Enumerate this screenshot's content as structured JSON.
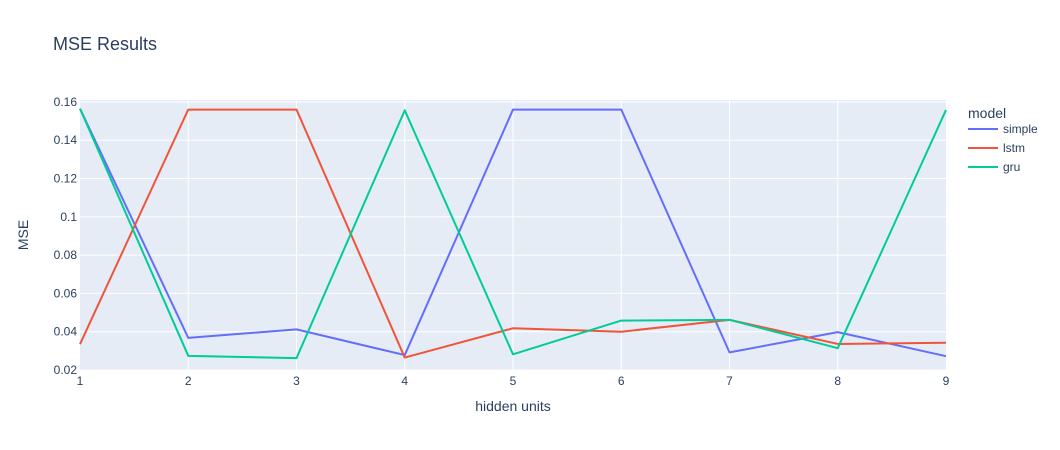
{
  "chart_data": {
    "type": "line",
    "title": "MSE Results",
    "xlabel": "hidden units",
    "ylabel": "MSE",
    "x": [
      1,
      2,
      3,
      4,
      5,
      6,
      7,
      8,
      9
    ],
    "xlim": [
      1,
      9
    ],
    "ylim": [
      0.02,
      0.161
    ],
    "xticks": [
      1,
      2,
      3,
      4,
      5,
      6,
      7,
      8,
      9
    ],
    "yticks": [
      0.02,
      0.04,
      0.06,
      0.08,
      0.1,
      0.12,
      0.14,
      0.16
    ],
    "ytick_labels": [
      "0.02",
      "0.04",
      "0.06",
      "0.08",
      "0.1",
      "0.12",
      "0.14",
      "0.16"
    ],
    "grid": true,
    "legend": {
      "title": "model",
      "position": "right"
    },
    "series": [
      {
        "name": "simple",
        "color": "#636efa",
        "values": [
          0.1565,
          0.0368,
          0.0412,
          0.0278,
          0.156,
          0.156,
          0.0292,
          0.0398,
          0.0272
        ]
      },
      {
        "name": "lstm",
        "color": "#ef553b",
        "values": [
          0.0335,
          0.156,
          0.156,
          0.0265,
          0.0418,
          0.04,
          0.0462,
          0.0336,
          0.0342
        ]
      },
      {
        "name": "gru",
        "color": "#00cc96",
        "values": [
          0.1565,
          0.0274,
          0.0262,
          0.1556,
          0.0282,
          0.0458,
          0.0462,
          0.0314,
          0.1558
        ]
      }
    ]
  }
}
